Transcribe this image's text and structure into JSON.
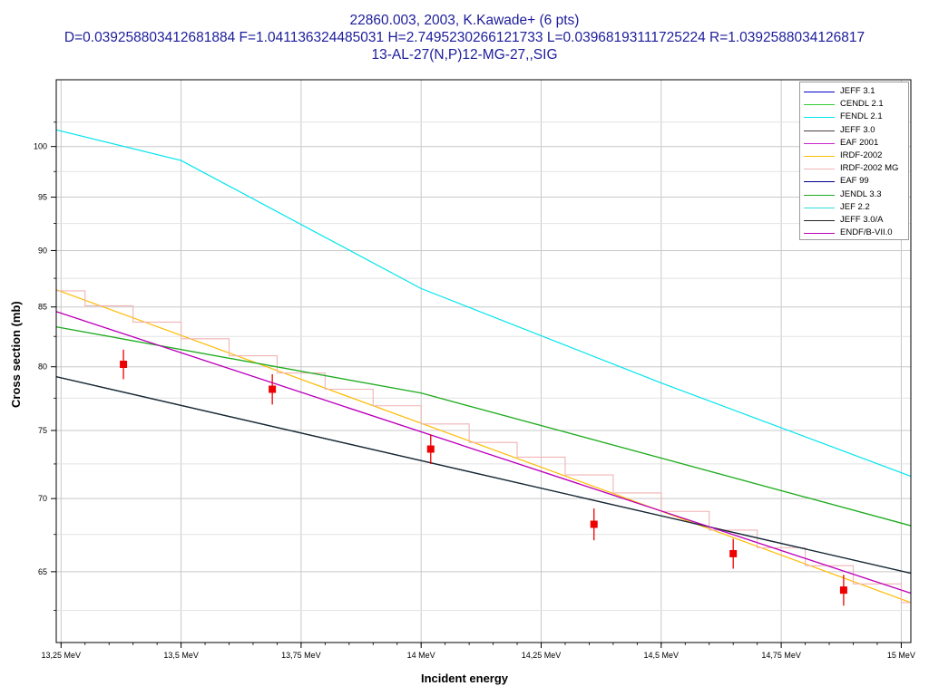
{
  "title": {
    "line1": "22860.003, 2003, K.Kawade+ (6 pts)",
    "line2": "D=0.039258803412681884 F=1.041136324485031 H=2.7495230266121733 L=0.03968193111725224 R=1.0392588034126817",
    "line3": "13-AL-27(N,P)12-MG-27,,SIG"
  },
  "chart_data": {
    "type": "line",
    "xlabel": "Incident energy",
    "ylabel": "Cross section (mb)",
    "x_ticks": [
      13.25,
      13.5,
      13.75,
      14,
      14.25,
      14.5,
      14.75,
      15
    ],
    "x_tick_labels": [
      "13,25 MeV",
      "13,5 MeV",
      "13,75 MeV",
      "14 MeV",
      "14,25 MeV",
      "14,5 MeV",
      "14,75 MeV",
      "15 MeV"
    ],
    "y_ticks": [
      65,
      70,
      75,
      80,
      85,
      90,
      95,
      100
    ],
    "y_tick_labels": [
      "65",
      "70",
      "75",
      "80",
      "85",
      "90",
      "95",
      "100"
    ],
    "y_scale": "log",
    "xlim": [
      13.24,
      15.02
    ],
    "ylim": [
      60.5,
      107
    ],
    "grid": true,
    "legend_position": "top-right",
    "series": [
      {
        "name": "JEFF 3.1",
        "color": "#0000cc",
        "step": false,
        "x": [
          13.24,
          15.02
        ],
        "y": [
          79.2,
          64.9
        ]
      },
      {
        "name": "CENDL 2.1",
        "color": "#33cc33",
        "step": false,
        "x": [
          13.24,
          14.0,
          15.02
        ],
        "y": [
          83.3,
          77.9,
          68.1
        ]
      },
      {
        "name": "FENDL 2.1",
        "color": "#00e5ee",
        "step": false,
        "x": [
          13.24,
          13.5,
          14.0,
          14.5,
          15.02
        ],
        "y": [
          101.7,
          98.6,
          86.6,
          78.7,
          71.6
        ]
      },
      {
        "name": "JEFF 3.0",
        "color": "#4b3c3c",
        "step": false,
        "x": [
          13.24,
          15.02
        ],
        "y": [
          79.2,
          64.9
        ]
      },
      {
        "name": "EAF 2001",
        "color": "#cc22cc",
        "step": false,
        "x": [
          13.24,
          15.02
        ],
        "y": [
          84.6,
          63.6
        ]
      },
      {
        "name": "IRDF-2002",
        "color": "#ffbb00",
        "step": false,
        "x": [
          13.24,
          15.02
        ],
        "y": [
          86.5,
          63.0
        ]
      },
      {
        "name": "IRDF-2002 MG",
        "color": "#f0b4b4",
        "step": true,
        "edges": [
          13.24,
          13.3,
          13.4,
          13.5,
          13.6,
          13.7,
          13.8,
          13.9,
          14.0,
          14.1,
          14.2,
          14.3,
          14.4,
          14.5,
          14.6,
          14.7,
          14.8,
          14.9,
          15.0,
          15.02
        ],
        "values": [
          86.4,
          85.1,
          83.7,
          82.3,
          80.9,
          79.5,
          78.2,
          76.9,
          75.5,
          74.1,
          73.0,
          71.7,
          70.4,
          69.1,
          67.8,
          66.6,
          65.4,
          64.2,
          63.0
        ]
      },
      {
        "name": "EAF 99",
        "color": "#00008b",
        "step": false,
        "x": [
          13.24,
          15.02
        ],
        "y": [
          79.2,
          64.9
        ]
      },
      {
        "name": "JENDL 3.3",
        "color": "#22aa22",
        "step": false,
        "x": [
          13.24,
          14.0,
          15.02
        ],
        "y": [
          83.3,
          77.9,
          68.1
        ]
      },
      {
        "name": "JEF 2.2",
        "color": "#33dddd",
        "step": false,
        "x": [
          13.24,
          15.02
        ],
        "y": [
          79.2,
          64.9
        ]
      },
      {
        "name": "JEFF 3.0/A",
        "color": "#222222",
        "step": false,
        "x": [
          13.24,
          15.02
        ],
        "y": [
          79.2,
          64.9
        ]
      },
      {
        "name": "ENDF/B-VII.0",
        "color": "#bb00bb",
        "step": false,
        "x": [
          13.24,
          15.02
        ],
        "y": [
          84.6,
          63.6
        ]
      }
    ],
    "experimental": {
      "color": "#ee0000",
      "points": [
        {
          "x": 13.38,
          "y": 80.2,
          "err": 1.2
        },
        {
          "x": 13.69,
          "y": 78.2,
          "err": 1.2
        },
        {
          "x": 14.02,
          "y": 73.6,
          "err": 1.1
        },
        {
          "x": 14.36,
          "y": 68.2,
          "err": 1.1
        },
        {
          "x": 14.65,
          "y": 66.2,
          "err": 1.0
        },
        {
          "x": 14.88,
          "y": 63.8,
          "err": 1.0
        }
      ]
    }
  }
}
